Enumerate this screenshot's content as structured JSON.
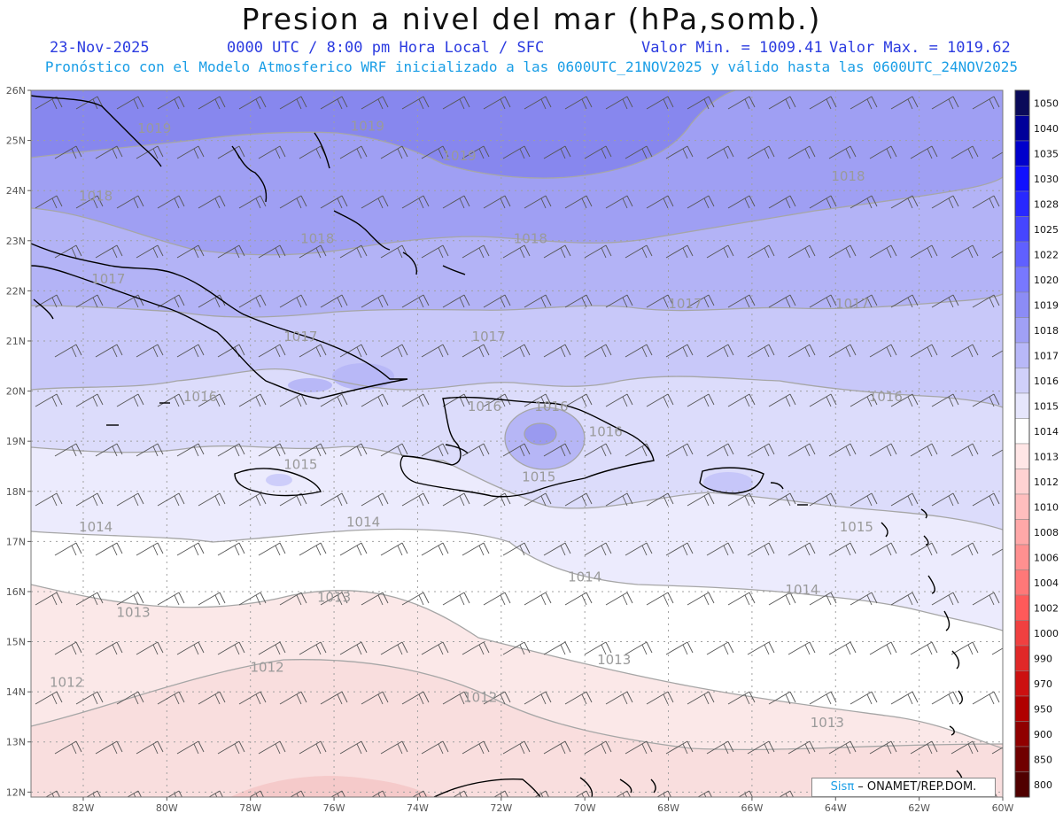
{
  "header": {
    "title": "Presion a nivel del mar (hPa,somb.)",
    "date": "23-Nov-2025",
    "time": "0000 UTC / 8:00 pm Hora Local / SFC",
    "min_label": "Valor Min. = 1009.41",
    "max_label": "Valor Max. = 1019.62",
    "model_line": "Pronóstico con el Modelo Atmosferico WRF inicializado a las 0600UTC_21NOV2025 y válido hasta las  0600UTC_24NOV2025"
  },
  "axes": {
    "lat_labels": [
      "26N",
      "25N",
      "24N",
      "23N",
      "22N",
      "21N",
      "20N",
      "19N",
      "18N",
      "17N",
      "16N",
      "15N",
      "14N",
      "13N",
      "12N"
    ],
    "lon_labels": [
      "82W",
      "80W",
      "78W",
      "76W",
      "74W",
      "72W",
      "70W",
      "68W",
      "66W",
      "64W",
      "62W",
      "60W"
    ]
  },
  "colorbar": {
    "levels": [
      "1050",
      "1040",
      "1035",
      "1030",
      "1028",
      "1025",
      "1022",
      "1020",
      "1019",
      "1018",
      "1017",
      "1016",
      "1015",
      "1014",
      "1013",
      "1012",
      "1010",
      "1008",
      "1006",
      "1004",
      "1002",
      "1000",
      "990",
      "970",
      "950",
      "900",
      "850",
      "800"
    ],
    "colors": [
      "#0a0a5a",
      "#00009a",
      "#0000cc",
      "#1010ff",
      "#2828ff",
      "#4646ff",
      "#6060ff",
      "#7878ff",
      "#8c8cf5",
      "#a0a0f5",
      "#b8b8f8",
      "#d0d0fa",
      "#e6e6fc",
      "#ffffff",
      "#ffe6e6",
      "#ffd2d2",
      "#ffbebe",
      "#ffa8a8",
      "#ff9090",
      "#ff7878",
      "#ff5a5a",
      "#f04040",
      "#e02828",
      "#cc1010",
      "#b00000",
      "#900000",
      "#700000",
      "#500000"
    ]
  },
  "isobar_labels": [
    {
      "text": "1019",
      "lon": -80.3,
      "lat": 25.15
    },
    {
      "text": "1019",
      "lon": -75.2,
      "lat": 25.2
    },
    {
      "text": "1019",
      "lon": -73.0,
      "lat": 24.6
    },
    {
      "text": "1018",
      "lon": -81.7,
      "lat": 23.8
    },
    {
      "text": "1018",
      "lon": -63.7,
      "lat": 24.2
    },
    {
      "text": "1018",
      "lon": -76.4,
      "lat": 22.95
    },
    {
      "text": "1018",
      "lon": -71.3,
      "lat": 22.95
    },
    {
      "text": "1017",
      "lon": -81.4,
      "lat": 22.15
    },
    {
      "text": "1017",
      "lon": -76.8,
      "lat": 21.0
    },
    {
      "text": "1017",
      "lon": -72.3,
      "lat": 21.0
    },
    {
      "text": "1017",
      "lon": -67.6,
      "lat": 21.65
    },
    {
      "text": "1017",
      "lon": -63.6,
      "lat": 21.65
    },
    {
      "text": "1016",
      "lon": -79.2,
      "lat": 19.8
    },
    {
      "text": "1016",
      "lon": -72.4,
      "lat": 19.6
    },
    {
      "text": "1016",
      "lon": -70.8,
      "lat": 19.6
    },
    {
      "text": "1016",
      "lon": -69.5,
      "lat": 19.1
    },
    {
      "text": "1016",
      "lon": -62.8,
      "lat": 19.8
    },
    {
      "text": "1015",
      "lon": -76.8,
      "lat": 18.45
    },
    {
      "text": "1015",
      "lon": -71.1,
      "lat": 18.2
    },
    {
      "text": "1015",
      "lon": -63.5,
      "lat": 17.2
    },
    {
      "text": "1014",
      "lon": -81.7,
      "lat": 17.2
    },
    {
      "text": "1014",
      "lon": -75.3,
      "lat": 17.3
    },
    {
      "text": "1014",
      "lon": -70.0,
      "lat": 16.2
    },
    {
      "text": "1014",
      "lon": -64.8,
      "lat": 15.95
    },
    {
      "text": "1013",
      "lon": -80.8,
      "lat": 15.5
    },
    {
      "text": "1013",
      "lon": -76.0,
      "lat": 15.8
    },
    {
      "text": "1013",
      "lon": -69.3,
      "lat": 14.55
    },
    {
      "text": "1013",
      "lon": -64.2,
      "lat": 13.3
    },
    {
      "text": "1012",
      "lon": -82.4,
      "lat": 14.1
    },
    {
      "text": "1012",
      "lon": -77.6,
      "lat": 14.4
    },
    {
      "text": "1012",
      "lon": -72.5,
      "lat": 13.8
    }
  ],
  "credit": {
    "brand_prefix": "Sis",
    "brand_pi": "π",
    "text": "– ONAMET/REP.DOM."
  }
}
